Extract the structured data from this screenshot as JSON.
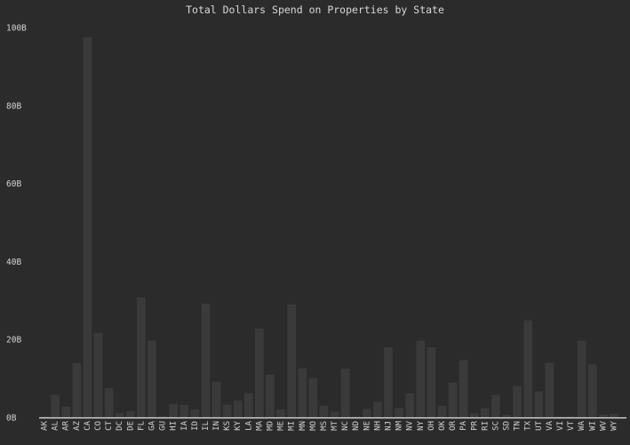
{
  "chart_data": {
    "type": "bar",
    "title": "Total Dollars Spend on Properties by State",
    "xlabel": "",
    "ylabel": "",
    "ylim": [
      0,
      100
    ],
    "yticks": [
      0,
      20,
      40,
      60,
      80,
      100
    ],
    "ytick_labels": [
      "0B",
      "20B",
      "40B",
      "60B",
      "80B",
      "100B"
    ],
    "grid": false,
    "colors": {
      "background": "#2b2b2b",
      "bar": "#3a3a3a",
      "axis": "#e6e6e6",
      "text": "#d4d4d4"
    },
    "categories": [
      "AK",
      "AL",
      "AR",
      "AZ",
      "CA",
      "CO",
      "CT",
      "DC",
      "DE",
      "FL",
      "GA",
      "GU",
      "HI",
      "IA",
      "ID",
      "IL",
      "IN",
      "KS",
      "KY",
      "LA",
      "MA",
      "MD",
      "ME",
      "MI",
      "MN",
      "MO",
      "MS",
      "MT",
      "NC",
      "ND",
      "NE",
      "NH",
      "NJ",
      "NM",
      "NV",
      "NY",
      "OH",
      "OK",
      "OR",
      "PA",
      "PR",
      "RI",
      "SC",
      "SD",
      "TN",
      "TX",
      "UT",
      "VA",
      "VI",
      "VT",
      "WA",
      "WI",
      "WV",
      "WY"
    ],
    "values": [
      0.3,
      5.8,
      2.8,
      13.9,
      97.5,
      21.7,
      7.5,
      1.1,
      1.6,
      30.8,
      19.7,
      0.3,
      3.5,
      3.2,
      2.1,
      29.2,
      9.2,
      3.3,
      4.3,
      6.2,
      22.8,
      11.0,
      2.0,
      29.0,
      12.6,
      10.1,
      3.0,
      1.5,
      12.5,
      0.2,
      2.2,
      4.0,
      18.0,
      2.4,
      6.2,
      19.7,
      18.0,
      3.0,
      9.0,
      14.7,
      1.1,
      2.4,
      5.8,
      0.7,
      8.1,
      24.9,
      6.7,
      14.0,
      0.2,
      0.3,
      19.7,
      13.6,
      0.8,
      0.9
    ]
  }
}
